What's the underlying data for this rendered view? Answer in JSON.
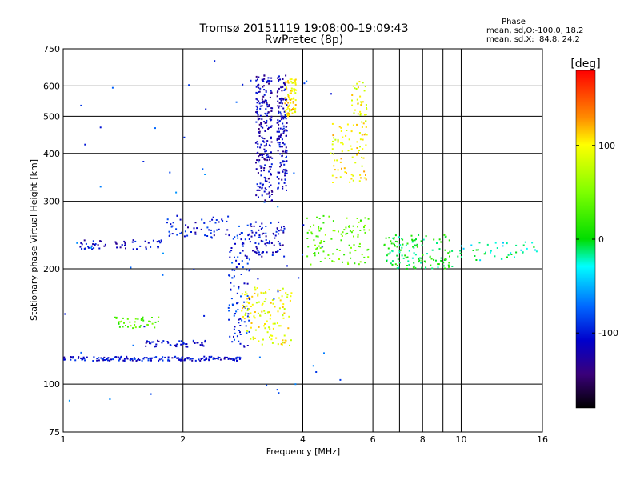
{
  "chart_data": {
    "type": "scatter",
    "title": "Tromsø 20151119 19:08:00-19:09:43",
    "subtitle": "RwPretec (8p)",
    "xlabel": "Frequency [MHz]",
    "ylabel": "Stationary phase Virtual Height [km]",
    "x_scale": "log",
    "y_scale": "log",
    "xlim": [
      1,
      16
    ],
    "ylim": [
      75,
      750
    ],
    "x_ticks": [
      1,
      2,
      4,
      6,
      8,
      10,
      16
    ],
    "x_tick_labels": [
      "1",
      "2",
      "4",
      "6",
      "8",
      "10",
      "16"
    ],
    "x_minor_gridlines": [
      7,
      9
    ],
    "y_ticks": [
      75,
      100,
      200,
      300,
      400,
      500,
      600,
      750
    ],
    "y_tick_labels": [
      "75",
      "100",
      "200",
      "300",
      "400",
      "500",
      "600",
      "750"
    ],
    "grid": true,
    "stats": {
      "title": "Phase",
      "line_o": "mean, sd,O:-100.0, 18.2",
      "line_x": "mean, sd,X:  84.8, 24.2"
    },
    "colorbar": {
      "label": "[deg]",
      "range": [
        -180,
        180
      ],
      "ticks": [
        100,
        0,
        -100
      ],
      "tick_labels": [
        "100",
        "0",
        "-100"
      ]
    },
    "traces": [
      {
        "f_start": 1.0,
        "f_end": 2.8,
        "h_start": 115,
        "h_end": 118,
        "phase": -105,
        "count": 170
      },
      {
        "f_start": 2.6,
        "f_end": 2.95,
        "h_start": 125,
        "h_end": 260,
        "phase": -95,
        "count": 110
      },
      {
        "f_start": 1.6,
        "f_end": 2.3,
        "h_start": 125,
        "h_end": 130,
        "phase": -110,
        "count": 50
      },
      {
        "f_start": 1.35,
        "f_end": 1.75,
        "h_start": 140,
        "h_end": 150,
        "phase": 30,
        "count": 40
      },
      {
        "f_start": 1.1,
        "f_end": 1.8,
        "h_start": 225,
        "h_end": 238,
        "phase": -110,
        "count": 55
      },
      {
        "f_start": 1.8,
        "f_end": 2.6,
        "h_start": 240,
        "h_end": 275,
        "phase": -105,
        "count": 55
      },
      {
        "f_start": 2.95,
        "f_end": 3.6,
        "h_start": 215,
        "h_end": 265,
        "phase": -110,
        "count": 80
      },
      {
        "f_start": 2.8,
        "f_end": 3.75,
        "h_start": 126,
        "h_end": 180,
        "phase": 95,
        "count": 130
      },
      {
        "f_start": 3.05,
        "f_end": 3.35,
        "h_start": 300,
        "h_end": 640,
        "phase": -120,
        "count": 220
      },
      {
        "f_start": 3.45,
        "f_end": 3.65,
        "h_start": 320,
        "h_end": 640,
        "phase": -115,
        "count": 150
      },
      {
        "f_start": 3.6,
        "f_end": 3.85,
        "h_start": 500,
        "h_end": 630,
        "phase": 105,
        "count": 70
      },
      {
        "f_start": 4.7,
        "f_end": 5.8,
        "h_start": 330,
        "h_end": 480,
        "phase": 100,
        "count": 80
      },
      {
        "f_start": 5.3,
        "f_end": 5.8,
        "h_start": 480,
        "h_end": 620,
        "phase": 95,
        "count": 35
      },
      {
        "f_start": 4.1,
        "f_end": 5.9,
        "h_start": 205,
        "h_end": 275,
        "phase": 40,
        "count": 110
      },
      {
        "f_start": 6.4,
        "f_end": 9.5,
        "h_start": 200,
        "h_end": 245,
        "phase": 0,
        "count": 130
      },
      {
        "f_start": 9.5,
        "f_end": 15.5,
        "h_start": 210,
        "h_end": 235,
        "phase": -20,
        "count": 45
      },
      {
        "f_start": 1.0,
        "f_end": 5.0,
        "h_start": 90,
        "h_end": 700,
        "phase": -80,
        "count": 60
      }
    ]
  }
}
